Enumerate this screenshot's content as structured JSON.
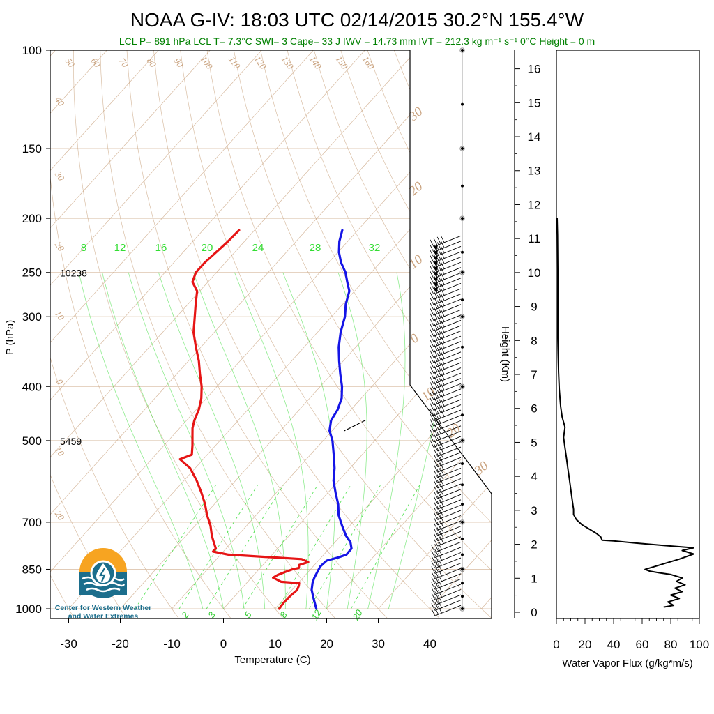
{
  "title": "NOAA G-IV: 18:03 UTC 02/14/2015  30.2°N 155.4°W",
  "subtitle": "LCL P= 891 hPa  LCL T= 7.3°C  SWI= 3  Cape= 33 J  IWV = 14.73 mm  IVT = 212.3 kg m⁻¹ s⁻¹  0°C Height = 0 m",
  "logo": {
    "line1": "Center for Western Weather",
    "line2": "and Water Extremes",
    "colors": {
      "sun": "#f7a421",
      "water": "#1c6e8c"
    }
  },
  "chart_data": [
    {
      "type": "line",
      "subtype": "skew-t",
      "xlabel": "Temperature (C)",
      "ylabel": "P (hPa)",
      "x_ticks": [
        "-30",
        "-20",
        "-10",
        "0",
        "10",
        "20",
        "30",
        "40"
      ],
      "y_ticks": [
        "100",
        "150",
        "200",
        "250",
        "300",
        "400",
        "500",
        "700",
        "850",
        "1000"
      ],
      "y_scale": "log",
      "ylim": [
        1000,
        100
      ],
      "height_labels": [
        {
          "p": 250,
          "text": "10238"
        },
        {
          "p": 500,
          "text": "5459"
        }
      ],
      "mixing_ratio_labels": [
        "8",
        "12",
        "16",
        "20",
        "24",
        "28",
        "32"
      ],
      "lower_mixing_labels": [
        "2",
        "3",
        "5",
        "8",
        "12",
        "20"
      ],
      "dry_adiabat_labels": [
        "50",
        "60",
        "70",
        "80",
        "90",
        "100",
        "110",
        "120",
        "130",
        "140",
        "150",
        "160"
      ],
      "left_edge_labels": [
        "40",
        "30",
        "20",
        "10",
        "0",
        "10",
        "20"
      ],
      "right_edge_labels": [
        "30",
        "20",
        "10",
        "0",
        "10",
        "20",
        "30"
      ],
      "colors": {
        "temperature": "#1515e6",
        "dewpoint": "#e61515",
        "parcel": "#000000",
        "isotherms": "#c9a27e",
        "mixing_ratio": "#33dd33"
      },
      "series": [
        {
          "name": "Temperature",
          "points": [
            [
              18.0,
              1000
            ],
            [
              16.6,
              975
            ],
            [
              15.2,
              950
            ],
            [
              13.8,
              925
            ],
            [
              12.8,
              900
            ],
            [
              12.2,
              880
            ],
            [
              11.8,
              860
            ],
            [
              11.4,
              840
            ],
            [
              11.6,
              820
            ],
            [
              13.2,
              810
            ],
            [
              14.4,
              800
            ],
            [
              14.3,
              780
            ],
            [
              13.0,
              760
            ],
            [
              11.0,
              740
            ],
            [
              8.5,
              710
            ],
            [
              6.0,
              680
            ],
            [
              4.0,
              650
            ],
            [
              1.5,
              620
            ],
            [
              -1.0,
              590
            ],
            [
              -3.0,
              560
            ],
            [
              -5.5,
              530
            ],
            [
              -8.2,
              500
            ],
            [
              -10.5,
              480
            ],
            [
              -12.0,
              460
            ],
            [
              -12.6,
              440
            ],
            [
              -13.8,
              420
            ],
            [
              -15.8,
              400
            ],
            [
              -18.3,
              380
            ],
            [
              -20.8,
              360
            ],
            [
              -23.3,
              340
            ],
            [
              -25.5,
              320
            ],
            [
              -27.4,
              300
            ],
            [
              -29.4,
              285
            ],
            [
              -31.0,
              270
            ],
            [
              -33.0,
              260
            ],
            [
              -35.0,
              250
            ],
            [
              -37.6,
              240
            ],
            [
              -39.8,
              230
            ],
            [
              -41.6,
              220
            ],
            [
              -43.0,
              210
            ]
          ]
        },
        {
          "name": "Dewpoint",
          "points": [
            [
              10.8,
              1000
            ],
            [
              10.6,
              975
            ],
            [
              10.7,
              950
            ],
            [
              11.0,
              925
            ],
            [
              10.6,
              910
            ],
            [
              10.2,
              900
            ],
            [
              6.5,
              895
            ],
            [
              5.0,
              885
            ],
            [
              4.2,
              880
            ],
            [
              4.6,
              870
            ],
            [
              5.5,
              860
            ],
            [
              6.5,
              850
            ],
            [
              7.5,
              845
            ],
            [
              7.0,
              835
            ],
            [
              8.3,
              825
            ],
            [
              6.5,
              815
            ],
            [
              -8.5,
              800
            ],
            [
              -12.0,
              790
            ],
            [
              -12.0,
              780
            ],
            [
              -13.5,
              760
            ],
            [
              -15.0,
              740
            ],
            [
              -17.0,
              710
            ],
            [
              -19.5,
              680
            ],
            [
              -21.8,
              650
            ],
            [
              -24.5,
              620
            ],
            [
              -27.5,
              590
            ],
            [
              -31.0,
              560
            ],
            [
              -34.5,
              540
            ],
            [
              -33.0,
              530
            ],
            [
              -34.5,
              510
            ],
            [
              -36.2,
              490
            ],
            [
              -37.5,
              475
            ],
            [
              -38.5,
              460
            ],
            [
              -39.5,
              440
            ],
            [
              -41.0,
              420
            ],
            [
              -43.0,
              400
            ],
            [
              -45.5,
              380
            ],
            [
              -48.0,
              360
            ],
            [
              -51.0,
              340
            ],
            [
              -54.0,
              320
            ],
            [
              -56.5,
              300
            ],
            [
              -58.5,
              285
            ],
            [
              -60.5,
              270
            ],
            [
              -63.0,
              260
            ],
            [
              -64.0,
              250
            ],
            [
              -64.0,
              240
            ],
            [
              -63.6,
              230
            ],
            [
              -63.2,
              220
            ],
            [
              -63.0,
              210
            ]
          ]
        },
        {
          "name": "Parcel",
          "points": [
            [
              -5.4,
              460
            ],
            [
              -6.5,
              470
            ],
            [
              -7.6,
              480
            ]
          ]
        }
      ]
    },
    {
      "type": "line",
      "xlabel": "Water Vapor Flux (g/kg*m/s)",
      "ylabel": "Height (Km)",
      "x_ticks": [
        "0",
        "20",
        "40",
        "60",
        "80",
        "100"
      ],
      "y_ticks": [
        "0",
        "1",
        "2",
        "3",
        "4",
        "5",
        "6",
        "7",
        "8",
        "9",
        "10",
        "11",
        "12",
        "13",
        "14",
        "15",
        "16"
      ],
      "xlim": [
        0,
        100
      ],
      "ylim": [
        0,
        16.4
      ],
      "colors": {
        "line": "#000000"
      },
      "series": [
        {
          "name": "Water Vapor Flux",
          "points": [
            [
              75,
              0.15
            ],
            [
              82,
              0.2
            ],
            [
              78,
              0.3
            ],
            [
              86,
              0.4
            ],
            [
              80,
              0.5
            ],
            [
              88,
              0.6
            ],
            [
              83,
              0.7
            ],
            [
              90,
              0.8
            ],
            [
              84,
              0.9
            ],
            [
              88,
              1.0
            ],
            [
              80,
              1.1
            ],
            [
              72,
              1.15
            ],
            [
              65,
              1.2
            ],
            [
              62,
              1.25
            ],
            [
              70,
              1.35
            ],
            [
              78,
              1.45
            ],
            [
              86,
              1.55
            ],
            [
              96,
              1.7
            ],
            [
              88,
              1.8
            ],
            [
              96,
              1.88
            ],
            [
              75,
              1.95
            ],
            [
              55,
              2.02
            ],
            [
              40,
              2.08
            ],
            [
              32,
              2.1
            ],
            [
              31,
              2.2
            ],
            [
              28,
              2.3
            ],
            [
              24,
              2.4
            ],
            [
              18,
              2.55
            ],
            [
              14,
              2.7
            ],
            [
              12,
              2.85
            ],
            [
              12,
              3.0
            ],
            [
              11,
              3.3
            ],
            [
              10,
              3.6
            ],
            [
              9,
              3.9
            ],
            [
              8,
              4.2
            ],
            [
              7,
              4.5
            ],
            [
              6,
              4.8
            ],
            [
              5,
              5.1
            ],
            [
              6,
              5.4
            ],
            [
              4,
              5.7
            ],
            [
              3,
              6.0
            ],
            [
              2,
              6.5
            ],
            [
              1.5,
              7.0
            ],
            [
              1.2,
              7.5
            ],
            [
              1,
              8.0
            ],
            [
              1,
              9
            ],
            [
              1,
              10
            ],
            [
              0.8,
              11
            ],
            [
              0.5,
              11.5
            ]
          ]
        }
      ]
    }
  ]
}
